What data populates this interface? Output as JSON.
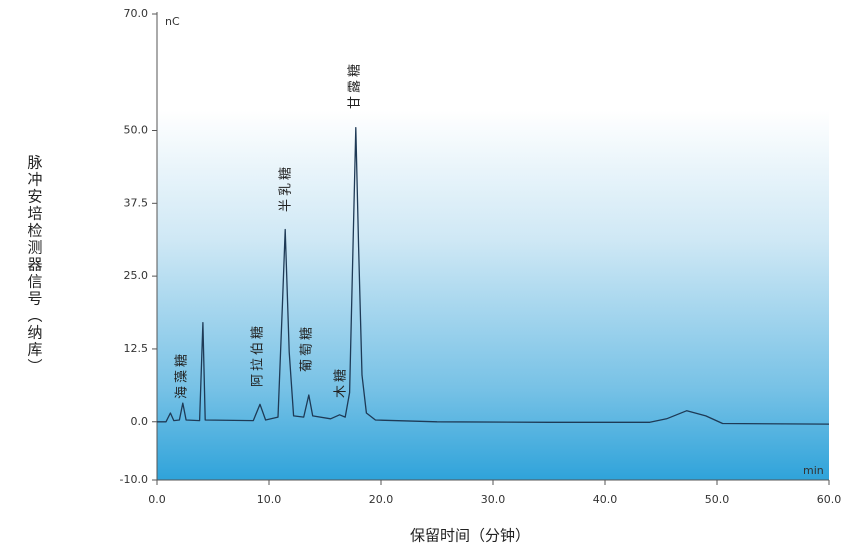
{
  "chart_data": {
    "type": "line",
    "y_label": "脉冲安培检测器信号（纳库）",
    "x_label": "保留时间（分钟）",
    "y_unit": "nC",
    "x_unit": "min",
    "annotations": [
      "海藻糖",
      "阿拉伯糖",
      "半乳糖",
      "葡萄糖",
      "木糖",
      "甘露糖"
    ],
    "x": [
      0,
      0.8,
      1.2,
      1.5,
      2.0,
      2.3,
      2.6,
      3.8,
      4.1,
      4.3,
      8.6,
      9.2,
      9.7,
      10.8,
      11.2,
      11.45,
      11.8,
      12.2,
      13.1,
      13.55,
      13.9,
      15.5,
      16.3,
      16.8,
      17.2,
      17.5,
      17.75,
      18.0,
      18.3,
      18.7,
      19.5,
      25,
      35,
      44,
      45.5,
      47.3,
      49,
      50.5,
      60
    ],
    "values": [
      0,
      0,
      1.5,
      0.2,
      0.3,
      3.2,
      0.3,
      0.2,
      17,
      0.3,
      0.2,
      3,
      0.3,
      0.8,
      20,
      33,
      12,
      1,
      0.8,
      4.6,
      1,
      0.5,
      1.2,
      0.8,
      5,
      30,
      50.5,
      30,
      8,
      1.5,
      0.3,
      0,
      -0.1,
      -0.1,
      0.5,
      1.9,
      1,
      -0.3,
      -0.4
    ],
    "color": "#1e3a56",
    "xlim": [
      0,
      60
    ],
    "ylim": [
      -10,
      70
    ],
    "xticks": [
      {
        "value": 0,
        "label": "0.0"
      },
      {
        "value": 10,
        "label": "10.0"
      },
      {
        "value": 20,
        "label": "20.0"
      },
      {
        "value": 30,
        "label": "30.0"
      },
      {
        "value": 40,
        "label": "40.0"
      },
      {
        "value": 50,
        "label": "50.0"
      },
      {
        "value": 60,
        "label": "60.0"
      }
    ],
    "yticks": [
      {
        "value": -10,
        "label": "-10.0"
      },
      {
        "value": 0,
        "label": "0.0"
      },
      {
        "value": 12.5,
        "label": "12.5"
      },
      {
        "value": 25,
        "label": "25.0"
      },
      {
        "value": 37.5,
        "label": "37.5"
      },
      {
        "value": 50,
        "label": "50.0"
      },
      {
        "value": 70,
        "label": "70.0"
      }
    ]
  }
}
